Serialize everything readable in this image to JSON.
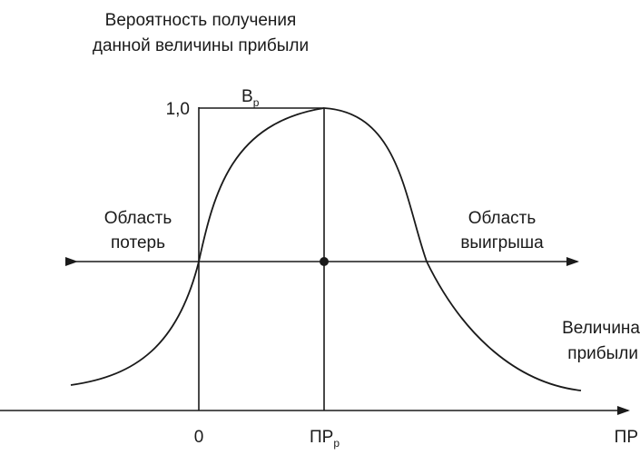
{
  "diagram": {
    "y_axis_title": [
      "Вероятность получения",
      "данной величины прибыли"
    ],
    "y_tick_1": "1,0",
    "peak_label": {
      "main": "В",
      "sub": "р"
    },
    "left_region": [
      "Область",
      "потерь"
    ],
    "right_region": [
      "Область",
      "выигрыша"
    ],
    "x_axis_caption": [
      "Величина",
      "прибыли"
    ],
    "x_tick_zero": "0",
    "x_tick_peak": {
      "main": "ПР",
      "sub": "р"
    },
    "x_axis_label": "ПР"
  }
}
